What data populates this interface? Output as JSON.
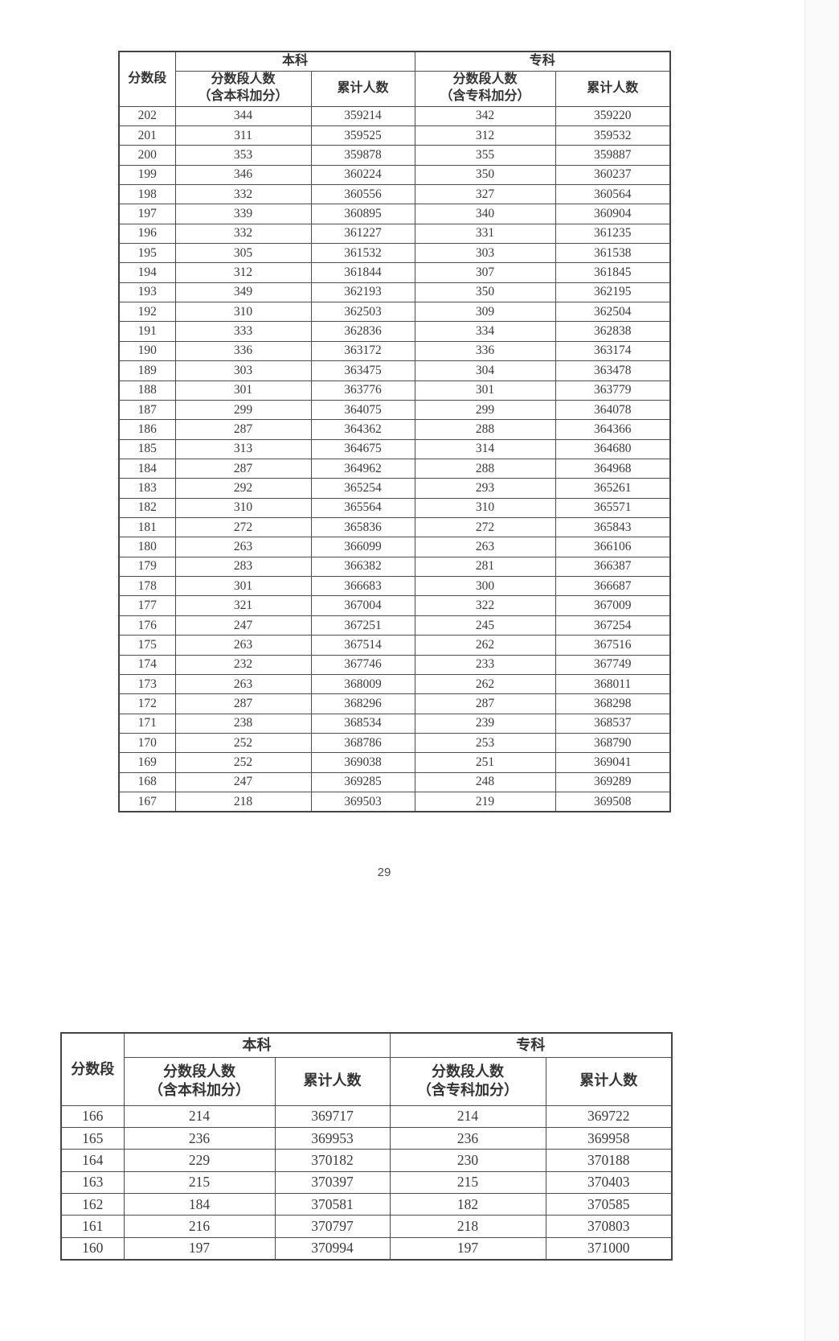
{
  "page": {
    "number": "29",
    "background_color": "#ffffff",
    "border_color": "#4d4d4d",
    "text_color": "#3b3b3b"
  },
  "table_upper": {
    "header": {
      "score_band": "分数段",
      "undergrad_group": "本科",
      "college_group": "专科",
      "band_count_line1": "分数段人数",
      "undergrad_band_count_line2": "（含本科加分）",
      "college_band_count_line2": "（含专科加分）",
      "cumulative": "累计人数"
    },
    "columns": [
      "分数段",
      "分数段人数（含本科加分）",
      "累计人数",
      "分数段人数（含专科加分）",
      "累计人数"
    ],
    "rows": [
      [
        202,
        344,
        359214,
        342,
        359220
      ],
      [
        201,
        311,
        359525,
        312,
        359532
      ],
      [
        200,
        353,
        359878,
        355,
        359887
      ],
      [
        199,
        346,
        360224,
        350,
        360237
      ],
      [
        198,
        332,
        360556,
        327,
        360564
      ],
      [
        197,
        339,
        360895,
        340,
        360904
      ],
      [
        196,
        332,
        361227,
        331,
        361235
      ],
      [
        195,
        305,
        361532,
        303,
        361538
      ],
      [
        194,
        312,
        361844,
        307,
        361845
      ],
      [
        193,
        349,
        362193,
        350,
        362195
      ],
      [
        192,
        310,
        362503,
        309,
        362504
      ],
      [
        191,
        333,
        362836,
        334,
        362838
      ],
      [
        190,
        336,
        363172,
        336,
        363174
      ],
      [
        189,
        303,
        363475,
        304,
        363478
      ],
      [
        188,
        301,
        363776,
        301,
        363779
      ],
      [
        187,
        299,
        364075,
        299,
        364078
      ],
      [
        186,
        287,
        364362,
        288,
        364366
      ],
      [
        185,
        313,
        364675,
        314,
        364680
      ],
      [
        184,
        287,
        364962,
        288,
        364968
      ],
      [
        183,
        292,
        365254,
        293,
        365261
      ],
      [
        182,
        310,
        365564,
        310,
        365571
      ],
      [
        181,
        272,
        365836,
        272,
        365843
      ],
      [
        180,
        263,
        366099,
        263,
        366106
      ],
      [
        179,
        283,
        366382,
        281,
        366387
      ],
      [
        178,
        301,
        366683,
        300,
        366687
      ],
      [
        177,
        321,
        367004,
        322,
        367009
      ],
      [
        176,
        247,
        367251,
        245,
        367254
      ],
      [
        175,
        263,
        367514,
        262,
        367516
      ],
      [
        174,
        232,
        367746,
        233,
        367749
      ],
      [
        173,
        263,
        368009,
        262,
        368011
      ],
      [
        172,
        287,
        368296,
        287,
        368298
      ],
      [
        171,
        238,
        368534,
        239,
        368537
      ],
      [
        170,
        252,
        368786,
        253,
        368790
      ],
      [
        169,
        252,
        369038,
        251,
        369041
      ],
      [
        168,
        247,
        369285,
        248,
        369289
      ],
      [
        167,
        218,
        369503,
        219,
        369508
      ]
    ]
  },
  "table_lower": {
    "header": {
      "score_band": "分数段",
      "undergrad_group": "本科",
      "college_group": "专科",
      "band_count_line1": "分数段人数",
      "undergrad_band_count_line2": "（含本科加分）",
      "college_band_count_line2": "（含专科加分）",
      "cumulative": "累计人数"
    },
    "columns": [
      "分数段",
      "分数段人数（含本科加分）",
      "累计人数",
      "分数段人数（含专科加分）",
      "累计人数"
    ],
    "rows": [
      [
        166,
        214,
        369717,
        214,
        369722
      ],
      [
        165,
        236,
        369953,
        236,
        369958
      ],
      [
        164,
        229,
        370182,
        230,
        370188
      ],
      [
        163,
        215,
        370397,
        215,
        370403
      ],
      [
        162,
        184,
        370581,
        182,
        370585
      ],
      [
        161,
        216,
        370797,
        218,
        370803
      ],
      [
        160,
        197,
        370994,
        197,
        371000
      ]
    ]
  }
}
